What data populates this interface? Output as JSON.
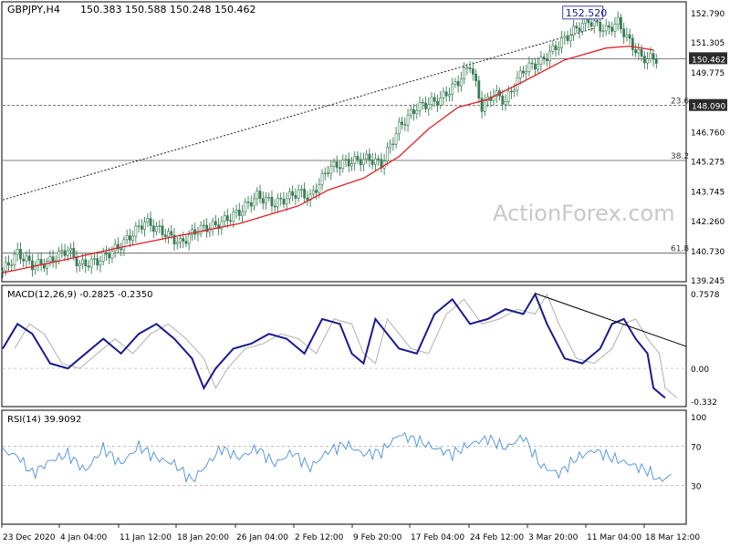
{
  "header": {
    "symbol": "GBPJPY,H4",
    "ohlc": "150.383 150.588 150.248 150.462"
  },
  "watermark": "ActionForex.com",
  "colors": {
    "candle": "#3b7d55",
    "ema": "#e0202a",
    "macd": "#1a1a8c",
    "macd_signal": "#b0b0b0",
    "rsi": "#4a90d9",
    "trendline": "#000000",
    "price_label_bg": "#2b2b2b",
    "peak_box": "#1a1a8c"
  },
  "chart_data": [
    {
      "type": "candlestick",
      "panel": "price",
      "title": "GBPJPY,H4",
      "ylim": [
        139.245,
        152.79
      ],
      "yticks": [
        152.79,
        151.305,
        149.775,
        148.29,
        146.76,
        145.275,
        143.745,
        142.26,
        140.73,
        139.245
      ],
      "ytick_labels": [
        "152.790",
        "151.305",
        "149.775",
        "148.290",
        "146.760",
        "145.275",
        "143.745",
        "142.260",
        "140.730",
        "139.245"
      ],
      "x_labels": [
        "23 Dec 2020",
        "4 Jan 04:00",
        "11 Jan 12:00",
        "18 Jan 20:00",
        "26 Jan 04:00",
        "2 Feb 12:00",
        "9 Feb 20:00",
        "17 Feb 04:00",
        "24 Feb 12:00",
        "3 Mar 20:00",
        "11 Mar 04:00",
        "18 Mar 12:00"
      ],
      "close_path": [
        [
          0,
          139.7
        ],
        [
          5,
          140.6
        ],
        [
          10,
          140.0
        ],
        [
          15,
          140.1
        ],
        [
          22,
          140.8
        ],
        [
          26,
          140.0
        ],
        [
          32,
          140.2
        ],
        [
          40,
          141.0
        ],
        [
          48,
          142.2
        ],
        [
          55,
          141.6
        ],
        [
          60,
          141.1
        ],
        [
          66,
          141.8
        ],
        [
          72,
          142.0
        ],
        [
          80,
          142.7
        ],
        [
          86,
          143.5
        ],
        [
          92,
          143.1
        ],
        [
          100,
          143.7
        ],
        [
          104,
          143.4
        ],
        [
          110,
          144.9
        ],
        [
          116,
          145.2
        ],
        [
          124,
          145.4
        ],
        [
          128,
          145.1
        ],
        [
          134,
          147.0
        ],
        [
          140,
          148.0
        ],
        [
          148,
          148.4
        ],
        [
          154,
          149.3
        ],
        [
          158,
          150.2
        ],
        [
          162,
          148.0
        ],
        [
          166,
          148.7
        ],
        [
          170,
          148.3
        ],
        [
          176,
          149.9
        ],
        [
          182,
          150.3
        ],
        [
          188,
          151.2
        ],
        [
          194,
          152.0
        ],
        [
          198,
          152.4
        ],
        [
          204,
          151.9
        ],
        [
          208,
          152.3
        ],
        [
          212,
          151.3
        ],
        [
          216,
          150.5
        ],
        [
          220,
          150.46
        ]
      ],
      "ema_path": [
        [
          0,
          139.6
        ],
        [
          22,
          140.3
        ],
        [
          40,
          140.9
        ],
        [
          60,
          141.5
        ],
        [
          80,
          142.1
        ],
        [
          100,
          143.0
        ],
        [
          110,
          143.8
        ],
        [
          122,
          144.4
        ],
        [
          134,
          145.5
        ],
        [
          144,
          146.9
        ],
        [
          154,
          148.0
        ],
        [
          164,
          148.4
        ],
        [
          176,
          149.3
        ],
        [
          190,
          150.4
        ],
        [
          204,
          151.0
        ],
        [
          212,
          151.1
        ],
        [
          220,
          150.9
        ]
      ],
      "trendline": [
        [
          0,
          143.3
        ],
        [
          200,
          152.0
        ]
      ],
      "horizontal_levels": [
        {
          "value": 150.462,
          "style": "solid",
          "label": "150.462",
          "highlight": true
        },
        {
          "value": 148.09,
          "style": "dashed",
          "label": "148.090",
          "fib": "23.6",
          "highlight": true
        },
        {
          "value": 145.3,
          "style": "solid",
          "fib": "38.2"
        },
        {
          "value": 140.6,
          "style": "solid",
          "fib": "61.8"
        }
      ],
      "annotations": [
        {
          "label": "152.520",
          "x": 198,
          "y": 152.52
        }
      ]
    },
    {
      "type": "line",
      "panel": "macd",
      "title": "MACD(12,26,9) -0.2825 -0.2350",
      "ylim": [
        -0.332,
        0.7578
      ],
      "yticks": [
        0.7578,
        0.0,
        -0.332
      ],
      "ytick_labels": [
        "0.7578",
        "0.00",
        "-0.332"
      ],
      "series": [
        {
          "name": "MACD",
          "points": [
            [
              0,
              0.2
            ],
            [
              5,
              0.45
            ],
            [
              10,
              0.35
            ],
            [
              16,
              0.05
            ],
            [
              22,
              0.0
            ],
            [
              28,
              0.15
            ],
            [
              34,
              0.3
            ],
            [
              40,
              0.15
            ],
            [
              46,
              0.35
            ],
            [
              52,
              0.45
            ],
            [
              58,
              0.3
            ],
            [
              64,
              0.1
            ],
            [
              68,
              -0.2
            ],
            [
              72,
              0.0
            ],
            [
              78,
              0.2
            ],
            [
              84,
              0.25
            ],
            [
              90,
              0.35
            ],
            [
              96,
              0.3
            ],
            [
              102,
              0.15
            ],
            [
              108,
              0.5
            ],
            [
              114,
              0.45
            ],
            [
              118,
              0.15
            ],
            [
              122,
              0.05
            ],
            [
              126,
              0.5
            ],
            [
              134,
              0.2
            ],
            [
              140,
              0.15
            ],
            [
              146,
              0.55
            ],
            [
              152,
              0.7
            ],
            [
              158,
              0.45
            ],
            [
              164,
              0.5
            ],
            [
              170,
              0.6
            ],
            [
              176,
              0.55
            ],
            [
              180,
              0.75
            ],
            [
              184,
              0.45
            ],
            [
              190,
              0.1
            ],
            [
              196,
              0.05
            ],
            [
              202,
              0.2
            ],
            [
              206,
              0.45
            ],
            [
              210,
              0.5
            ],
            [
              214,
              0.3
            ],
            [
              218,
              0.15
            ],
            [
              220,
              -0.2
            ],
            [
              224,
              -0.3
            ]
          ]
        }
      ],
      "trendline": [
        [
          180,
          0.76
        ],
        [
          220,
          0.5
        ]
      ]
    },
    {
      "type": "line",
      "panel": "rsi",
      "title": "RSI(14) 39.9092",
      "ylim": [
        0,
        100
      ],
      "yticks": [
        100,
        70,
        30
      ],
      "ytick_labels": [
        "100",
        "70",
        "30"
      ],
      "levels": [
        70,
        30
      ],
      "series": [
        {
          "name": "RSI(14)",
          "points": [
            [
              0,
              65
            ],
            [
              5,
              60
            ],
            [
              10,
              42
            ],
            [
              16,
              55
            ],
            [
              22,
              62
            ],
            [
              28,
              45
            ],
            [
              34,
              68
            ],
            [
              40,
              52
            ],
            [
              46,
              70
            ],
            [
              52,
              58
            ],
            [
              58,
              52
            ],
            [
              64,
              35
            ],
            [
              68,
              48
            ],
            [
              74,
              68
            ],
            [
              80,
              58
            ],
            [
              86,
              68
            ],
            [
              92,
              52
            ],
            [
              98,
              64
            ],
            [
              104,
              48
            ],
            [
              110,
              65
            ],
            [
              116,
              72
            ],
            [
              122,
              62
            ],
            [
              128,
              64
            ],
            [
              134,
              82
            ],
            [
              140,
              76
            ],
            [
              146,
              68
            ],
            [
              152,
              62
            ],
            [
              158,
              72
            ],
            [
              164,
              78
            ],
            [
              170,
              68
            ],
            [
              176,
              80
            ],
            [
              182,
              50
            ],
            [
              188,
              42
            ],
            [
              194,
              58
            ],
            [
              200,
              66
            ],
            [
              206,
              58
            ],
            [
              212,
              52
            ],
            [
              218,
              45
            ],
            [
              222,
              35
            ],
            [
              226,
              39.9
            ]
          ]
        }
      ]
    }
  ]
}
